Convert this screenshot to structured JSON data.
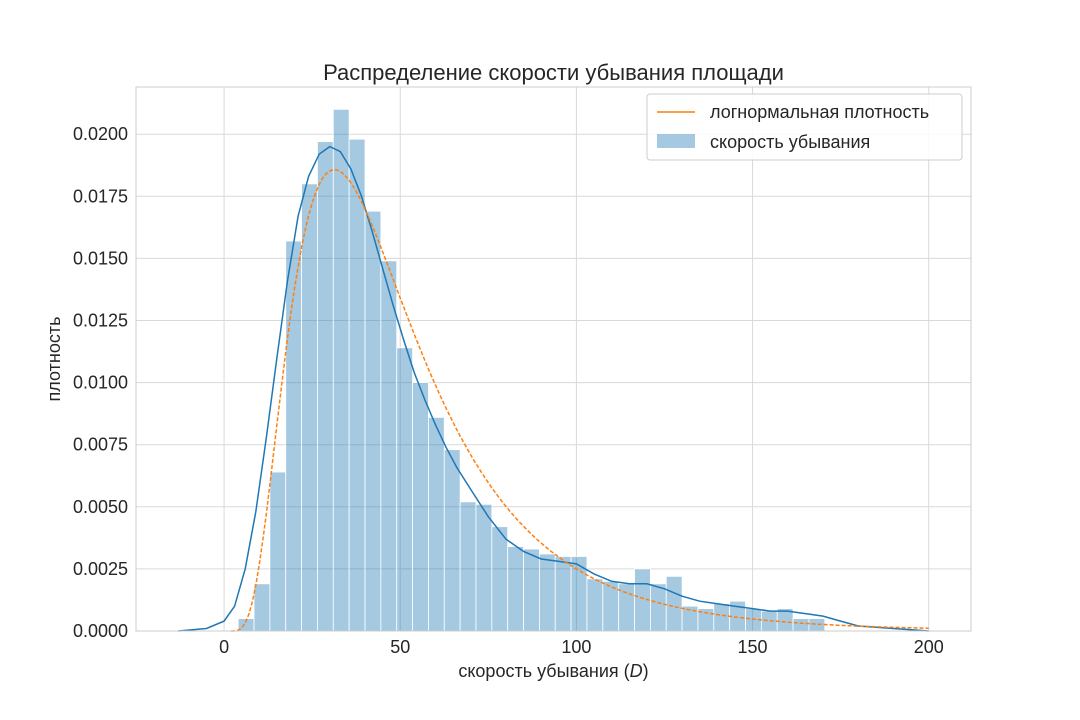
{
  "chart_data": {
    "type": "histogram",
    "title": "Распределение скорости убывания площади",
    "xlabel_prefix": "скорость убывания (",
    "xlabel_var": "D",
    "xlabel_suffix": ")",
    "ylabel": "плотность",
    "xlim": [
      -25,
      212
    ],
    "ylim": [
      0,
      0.0219
    ],
    "xticks": [
      0,
      50,
      100,
      150,
      200
    ],
    "yticks": [
      0.0,
      0.0025,
      0.005,
      0.0075,
      0.01,
      0.0125,
      0.015,
      0.0175,
      0.02
    ],
    "ytick_labels": [
      "0.0000",
      "0.0025",
      "0.0050",
      "0.0075",
      "0.0100",
      "0.0125",
      "0.0150",
      "0.0175",
      "0.0200"
    ],
    "grid": true,
    "legend_position": "top-right",
    "colors": {
      "hist": "#1f77b4",
      "kde": "#1f77b4",
      "lognormal": "#ff7f0e"
    },
    "histogram": {
      "name": "скорость убывания",
      "bin_start": 4,
      "bin_width": 4.5,
      "density": [
        0.0005,
        0.0019,
        0.0064,
        0.0157,
        0.018,
        0.0197,
        0.021,
        0.0198,
        0.0169,
        0.0149,
        0.0114,
        0.01,
        0.0086,
        0.0073,
        0.0052,
        0.0051,
        0.0042,
        0.0034,
        0.0033,
        0.0031,
        0.003,
        0.003,
        0.0021,
        0.002,
        0.0019,
        0.0025,
        0.0019,
        0.0022,
        0.001,
        0.0009,
        0.0011,
        0.0012,
        0.0009,
        0.0008,
        0.0009,
        0.0005,
        0.0005
      ]
    },
    "kde": {
      "x": [
        -13,
        -5,
        0,
        3,
        6,
        9,
        12,
        15,
        18,
        21,
        24,
        27,
        30,
        33,
        36,
        39,
        42,
        45,
        48,
        51,
        54,
        57,
        60,
        63,
        66,
        70,
        75,
        80,
        85,
        90,
        95,
        100,
        105,
        110,
        115,
        120,
        125,
        130,
        135,
        140,
        145,
        150,
        155,
        160,
        165,
        170,
        175,
        180,
        190,
        200
      ],
      "y": [
        0.0,
        0.0001,
        0.0004,
        0.001,
        0.0025,
        0.0048,
        0.0078,
        0.011,
        0.0141,
        0.0167,
        0.0183,
        0.0192,
        0.0195,
        0.0193,
        0.0186,
        0.0175,
        0.0161,
        0.0146,
        0.0131,
        0.0117,
        0.0104,
        0.0093,
        0.0083,
        0.0074,
        0.0066,
        0.0057,
        0.0046,
        0.0037,
        0.0032,
        0.0029,
        0.0028,
        0.0027,
        0.0023,
        0.002,
        0.0019,
        0.0019,
        0.0017,
        0.0014,
        0.0012,
        0.0011,
        0.001,
        0.0009,
        0.0008,
        0.0008,
        0.0007,
        0.0006,
        0.0004,
        0.0002,
        0.0001,
        0.0
      ],
      "name": ""
    },
    "lognormal": {
      "name": "логнормальная плотность",
      "mu": 3.78,
      "sigma": 0.58,
      "x_start": 2,
      "x_end": 200
    }
  }
}
